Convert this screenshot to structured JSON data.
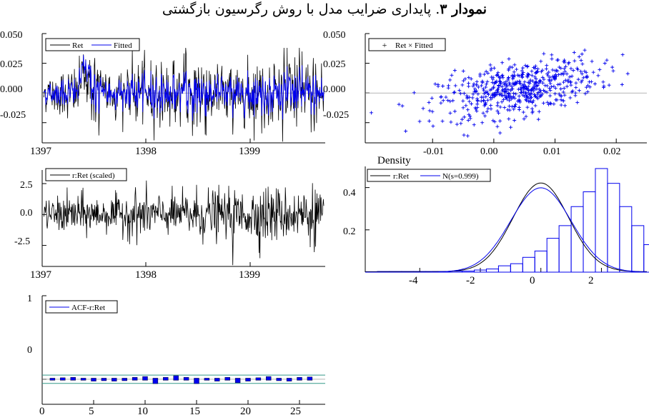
{
  "title": {
    "bold": "نمودار ۳",
    "rest": ". پایداری ضرایب مدل با روش رگرسیون بازگشتی"
  },
  "colors": {
    "ret": "#000000",
    "fitted": "#0000ee",
    "band": "#339988",
    "axis": "#000000"
  },
  "chart_data": [
    {
      "type": "line",
      "panel": "ret-fitted",
      "legend": [
        "Ret",
        "Fitted"
      ],
      "xticks": [
        "1397",
        "1398",
        "1399"
      ],
      "yticks": [
        "0.050",
        "0.025",
        "0.000",
        "-0.025"
      ],
      "ylim": [
        -0.042,
        0.05
      ],
      "series": [
        {
          "name": "Ret",
          "note_values": "daily returns, 1397 to mid 1399, range about -0.042 to 0.038"
        },
        {
          "name": "Fitted",
          "note_values": "recursive fitted values, range about -0.03 to 0.035"
        }
      ]
    },
    {
      "type": "scatter",
      "panel": "ret-x-fitted",
      "legend": [
        "Ret × Fitted"
      ],
      "xticks": [
        "-0.01",
        "0.00",
        "0.01",
        "0.02"
      ],
      "yticks": [
        "0.050",
        "0.025",
        "0.000",
        "-0.025"
      ],
      "xlim": [
        -0.021,
        0.025
      ],
      "ylim": [
        -0.042,
        0.05
      ]
    },
    {
      "type": "line",
      "panel": "scaled-residuals",
      "legend": [
        "r:Ret (scaled)"
      ],
      "xticks": [
        "1397",
        "1398",
        "1399"
      ],
      "yticks": [
        "2.5",
        "0.0",
        "-2.5"
      ],
      "ylim": [
        -4.2,
        3.6
      ]
    },
    {
      "type": "bar",
      "panel": "density",
      "label": "Density",
      "legend": [
        "r:Ret",
        "N(s=0.999)"
      ],
      "xticks": [
        "-4",
        "-2",
        "0",
        "2"
      ],
      "yticks": [
        "0.4",
        "0.2"
      ],
      "xlim": [
        -5.8,
        3.5
      ],
      "ylim": [
        0,
        0.5
      ],
      "bin_width": 0.4,
      "bins_start": -5.4,
      "values": [
        0.003,
        0.003,
        0.003,
        0.003,
        0.003,
        0.003,
        0.005,
        0.005,
        0.01,
        0.015,
        0.03,
        0.04,
        0.07,
        0.1,
        0.16,
        0.22,
        0.31,
        0.38,
        0.49,
        0.42,
        0.31,
        0.22,
        0.13,
        0.07,
        0.03,
        0.015,
        0.006,
        0.003
      ]
    },
    {
      "type": "bar",
      "panel": "acf",
      "legend": [
        "ACF-r:Ret"
      ],
      "xticks": [
        "0",
        "5",
        "10",
        "15",
        "20",
        "25"
      ],
      "yticks": [
        "1",
        "0"
      ],
      "ylim": [
        -0.3,
        1
      ],
      "band": 0.05,
      "lags": [
        1,
        2,
        3,
        4,
        5,
        6,
        7,
        8,
        9,
        10,
        11,
        12,
        13,
        14,
        15,
        16,
        17,
        18,
        19,
        20,
        21,
        22,
        23,
        24,
        25,
        26
      ],
      "values": [
        0.0,
        0.005,
        0.01,
        0.0,
        -0.01,
        -0.005,
        -0.01,
        -0.005,
        0.01,
        0.02,
        -0.04,
        0.01,
        0.03,
        0.01,
        -0.04,
        0.0,
        -0.01,
        0.01,
        -0.03,
        -0.01,
        0.005,
        0.02,
        -0.005,
        -0.01,
        0.01,
        0.015
      ]
    }
  ]
}
